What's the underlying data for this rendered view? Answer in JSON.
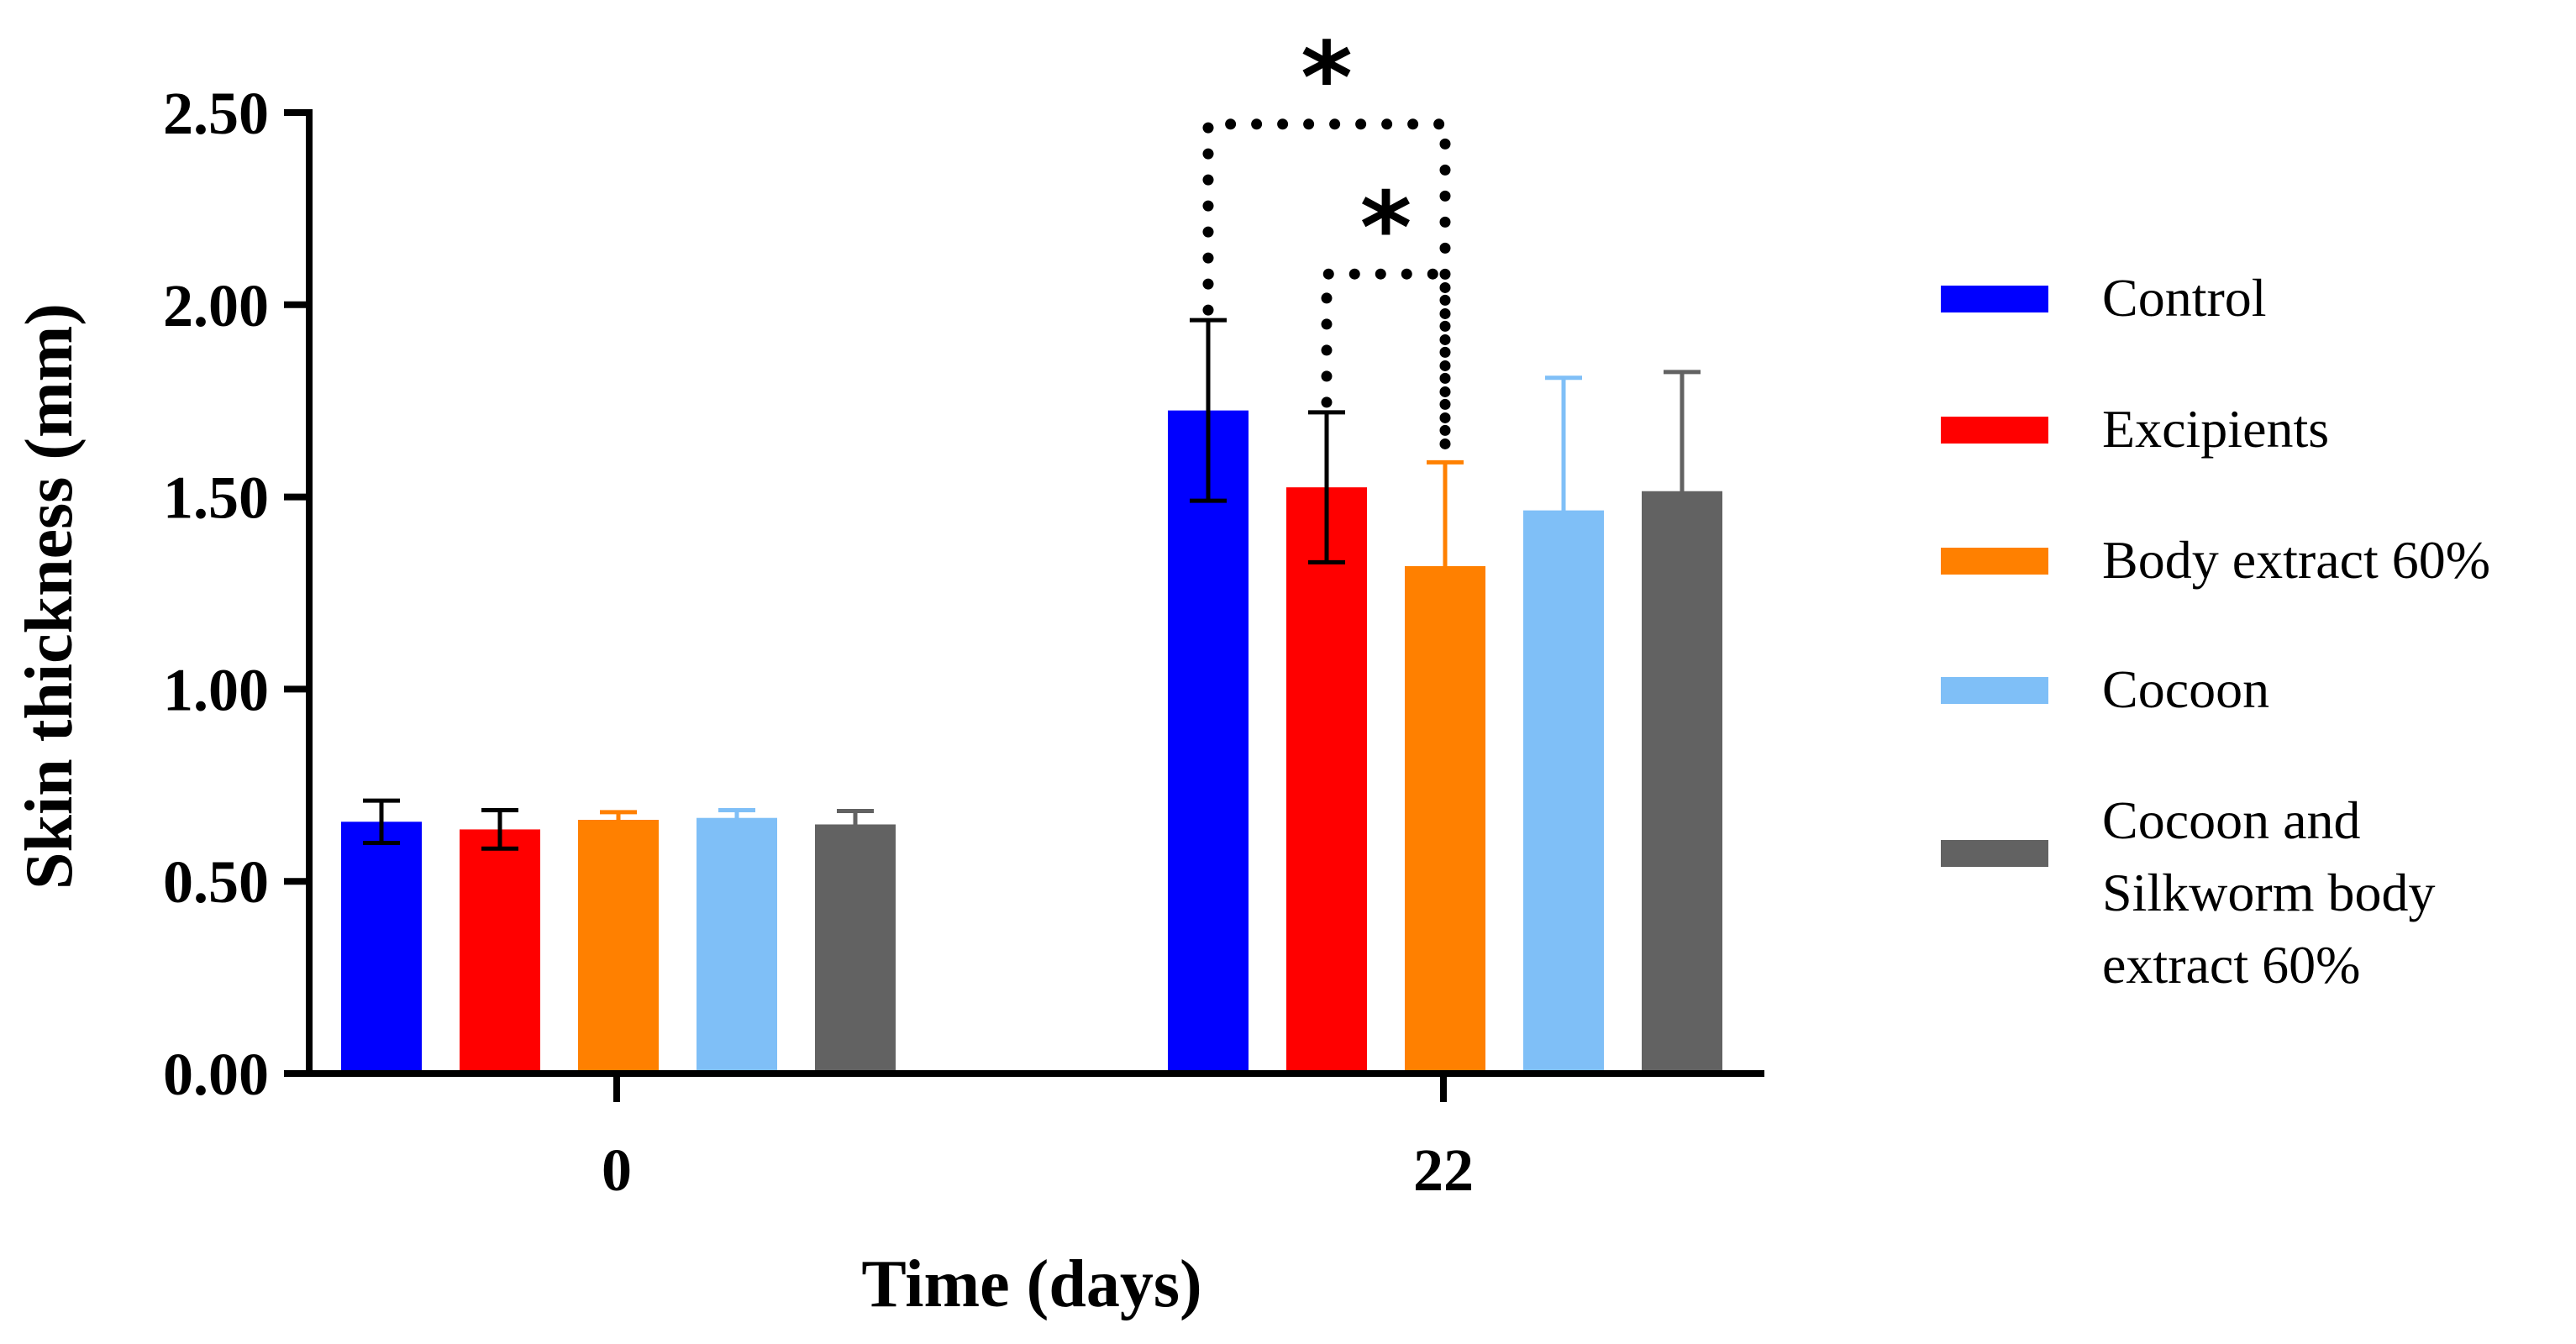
{
  "chart_data": {
    "type": "bar",
    "title": "",
    "xlabel": "Time (days)",
    "ylabel": "Skin thickness (mm)",
    "ylim": [
      0,
      2.5
    ],
    "yticks": [
      "0.00",
      "0.50",
      "1.00",
      "1.50",
      "2.00",
      "2.50"
    ],
    "categories": [
      "0",
      "22"
    ],
    "series": [
      {
        "name": "Control",
        "color": "#0000ff",
        "values": [
          0.655,
          1.725
        ],
        "errors": [
          0.055,
          0.235
        ],
        "error_color": "#000000"
      },
      {
        "name": "Excipients",
        "color": "#ff0000",
        "values": [
          0.635,
          1.525
        ],
        "errors": [
          0.05,
          0.195
        ],
        "error_color": "#000000"
      },
      {
        "name": "Body extract 60%",
        "color": "#ff8000",
        "values": [
          0.66,
          1.32
        ],
        "errors": [
          0.02,
          0.27
        ],
        "error_color": "#ff8000"
      },
      {
        "name": "Cocoon",
        "color": "#7fbff7",
        "values": [
          0.665,
          1.465
        ],
        "errors": [
          0.02,
          0.345
        ],
        "error_color": "#7fbff7"
      },
      {
        "name": "Cocoon and Silkworm body extract  60%",
        "color": "#626262",
        "values": [
          0.648,
          1.515
        ],
        "errors": [
          0.035,
          0.31
        ],
        "error_color": "#626262"
      }
    ],
    "legend_labels": [
      [
        "Control"
      ],
      [
        "Excipients"
      ],
      [
        "Body extract 60%"
      ],
      [
        "Cocoon"
      ],
      [
        "Cocoon and",
        "Silkworm body",
        "extract  60%"
      ]
    ],
    "legend_position": "right",
    "annotations": [
      {
        "text": "*",
        "category": "22",
        "from_series": 0,
        "to_series": 2,
        "level": 2.47
      },
      {
        "text": "*",
        "category": "22",
        "from_series": 1,
        "to_series": 2,
        "level": 2.08
      }
    ]
  }
}
